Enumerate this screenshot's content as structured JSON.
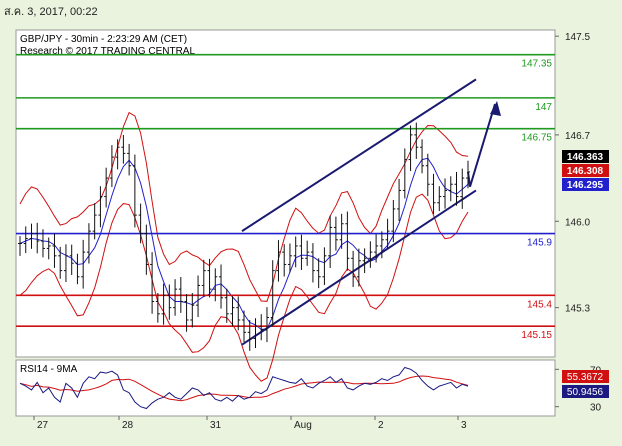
{
  "header": {
    "date_stamp": "ส.ค. 3, 2017, 00:22"
  },
  "chart_data": {
    "type": "candlestick",
    "title": "GBP/JPY - 30min - 2:23:29 AM (CET)",
    "subtitle": "Research © 2017 TRADING CENTRAL",
    "y_axis": {
      "ylim": [
        144.9,
        147.55
      ],
      "ticks": [
        "147.5",
        "146.7",
        "146.0",
        "145.3"
      ]
    },
    "x_axis": {
      "ticks": [
        "27",
        "28",
        "31",
        "Aug",
        "2",
        "3"
      ]
    },
    "levels": [
      {
        "label": "147.35",
        "value": 147.35,
        "color": "#1f9a1f"
      },
      {
        "label": "147",
        "value": 147.0,
        "color": "#1f9a1f"
      },
      {
        "label": "146.75",
        "value": 146.75,
        "color": "#1f9a1f"
      },
      {
        "label": "145.9",
        "value": 145.9,
        "color": "#2020cc"
      },
      {
        "label": "145.4",
        "value": 145.4,
        "color": "#d01010"
      },
      {
        "label": "145.15",
        "value": 145.15,
        "color": "#d01010"
      }
    ],
    "price_tags": [
      {
        "label": "146.363",
        "value": 146.363,
        "bg": "#000000"
      },
      {
        "label": "146.308",
        "value": 146.308,
        "bg": "#d01010"
      },
      {
        "label": "146.295",
        "value": 146.295,
        "bg": "#2020cc"
      }
    ],
    "price_series": [
      145.82,
      145.86,
      145.9,
      145.84,
      145.78,
      145.8,
      145.72,
      145.6,
      145.72,
      145.66,
      145.55,
      145.75,
      145.92,
      146.05,
      146.2,
      146.35,
      146.52,
      146.6,
      146.55,
      146.45,
      146.05,
      145.9,
      145.65,
      145.35,
      145.25,
      145.4,
      145.3,
      145.45,
      145.35,
      145.2,
      145.32,
      145.48,
      145.6,
      145.45,
      145.55,
      145.38,
      145.25,
      145.3,
      145.2,
      145.1,
      145.05,
      145.15,
      145.12,
      145.22,
      145.6,
      145.75,
      145.65,
      145.72,
      145.8,
      145.7,
      145.75,
      145.6,
      145.55,
      145.72,
      145.95,
      145.85,
      145.98,
      145.7,
      145.55,
      145.68,
      145.7,
      145.75,
      145.8,
      145.85,
      145.92,
      146.1,
      146.25,
      146.5,
      146.7,
      146.6,
      146.45,
      146.3,
      146.15,
      146.2,
      146.25,
      146.3,
      146.2,
      146.35,
      146.4
    ],
    "rsi": {
      "title": "RSI14 - 9MA",
      "ylim": [
        20,
        80
      ],
      "ticks": [
        "70",
        "30"
      ],
      "tags": [
        {
          "label": "55.3672",
          "value": 55.3672,
          "bg": "#d01010"
        },
        {
          "label": "50.9456",
          "value": 50.9456,
          "bg": "#1a1a80"
        }
      ],
      "series": [
        55,
        52,
        48,
        56,
        45,
        50,
        40,
        35,
        55,
        50,
        40,
        55,
        62,
        60,
        67,
        66,
        68,
        64,
        48,
        45,
        35,
        30,
        28,
        34,
        38,
        40,
        45,
        40,
        38,
        44,
        50,
        48,
        42,
        45,
        38,
        36,
        40,
        36,
        42,
        38,
        40,
        46,
        44,
        48,
        62,
        60,
        58,
        56,
        55,
        60,
        52,
        50,
        55,
        58,
        62,
        56,
        60,
        50,
        48,
        52,
        55,
        54,
        56,
        60,
        58,
        62,
        64,
        72,
        70,
        66,
        58,
        52,
        48,
        52,
        54,
        56,
        50,
        54,
        52
      ]
    }
  }
}
